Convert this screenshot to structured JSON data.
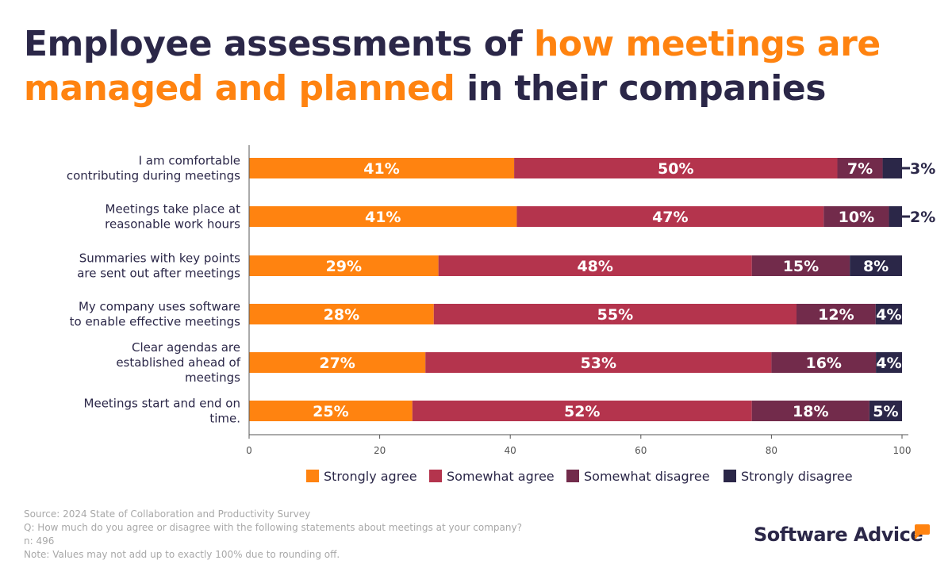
{
  "title": {
    "part1": "Employee assessments of ",
    "highlight1": "how meetings are managed and planned",
    "part2": " in their companies"
  },
  "chart_data": {
    "type": "bar",
    "orientation": "horizontal",
    "stacked": true,
    "categories": [
      "I am comfortable contributing during meetings",
      "Meetings take place at reasonable work hours",
      "Summaries with key points are sent out after meetings",
      "My company uses software to enable effective meetings",
      "Clear agendas are established ahead of meetings",
      "Meetings start and end on time."
    ],
    "series": [
      {
        "name": "Strongly agree",
        "color": "#ff8310",
        "values": [
          41,
          41,
          29,
          28,
          27,
          25
        ]
      },
      {
        "name": "Somewhat agree",
        "color": "#b4344d",
        "values": [
          50,
          47,
          48,
          55,
          53,
          52
        ]
      },
      {
        "name": "Somewhat disagree",
        "color": "#722b4b",
        "values": [
          7,
          10,
          15,
          12,
          16,
          18
        ]
      },
      {
        "name": "Strongly disagree",
        "color": "#2b2748",
        "values": [
          3,
          2,
          8,
          4,
          4,
          5
        ]
      }
    ],
    "xlim": [
      0,
      100
    ],
    "xticks": [
      "0",
      "20",
      "40",
      "60",
      "80",
      "100"
    ],
    "legend": "bottom",
    "grid": false
  },
  "footer": {
    "source": "Source: 2024 State of Collaboration and Productivity Survey",
    "question": "Q: How much do you agree or disagree with the following statements about meetings at your company?",
    "n": "n: 496",
    "note": "Note: Values may not add up to exactly 100% due to rounding off."
  },
  "logo": "Software Advice"
}
